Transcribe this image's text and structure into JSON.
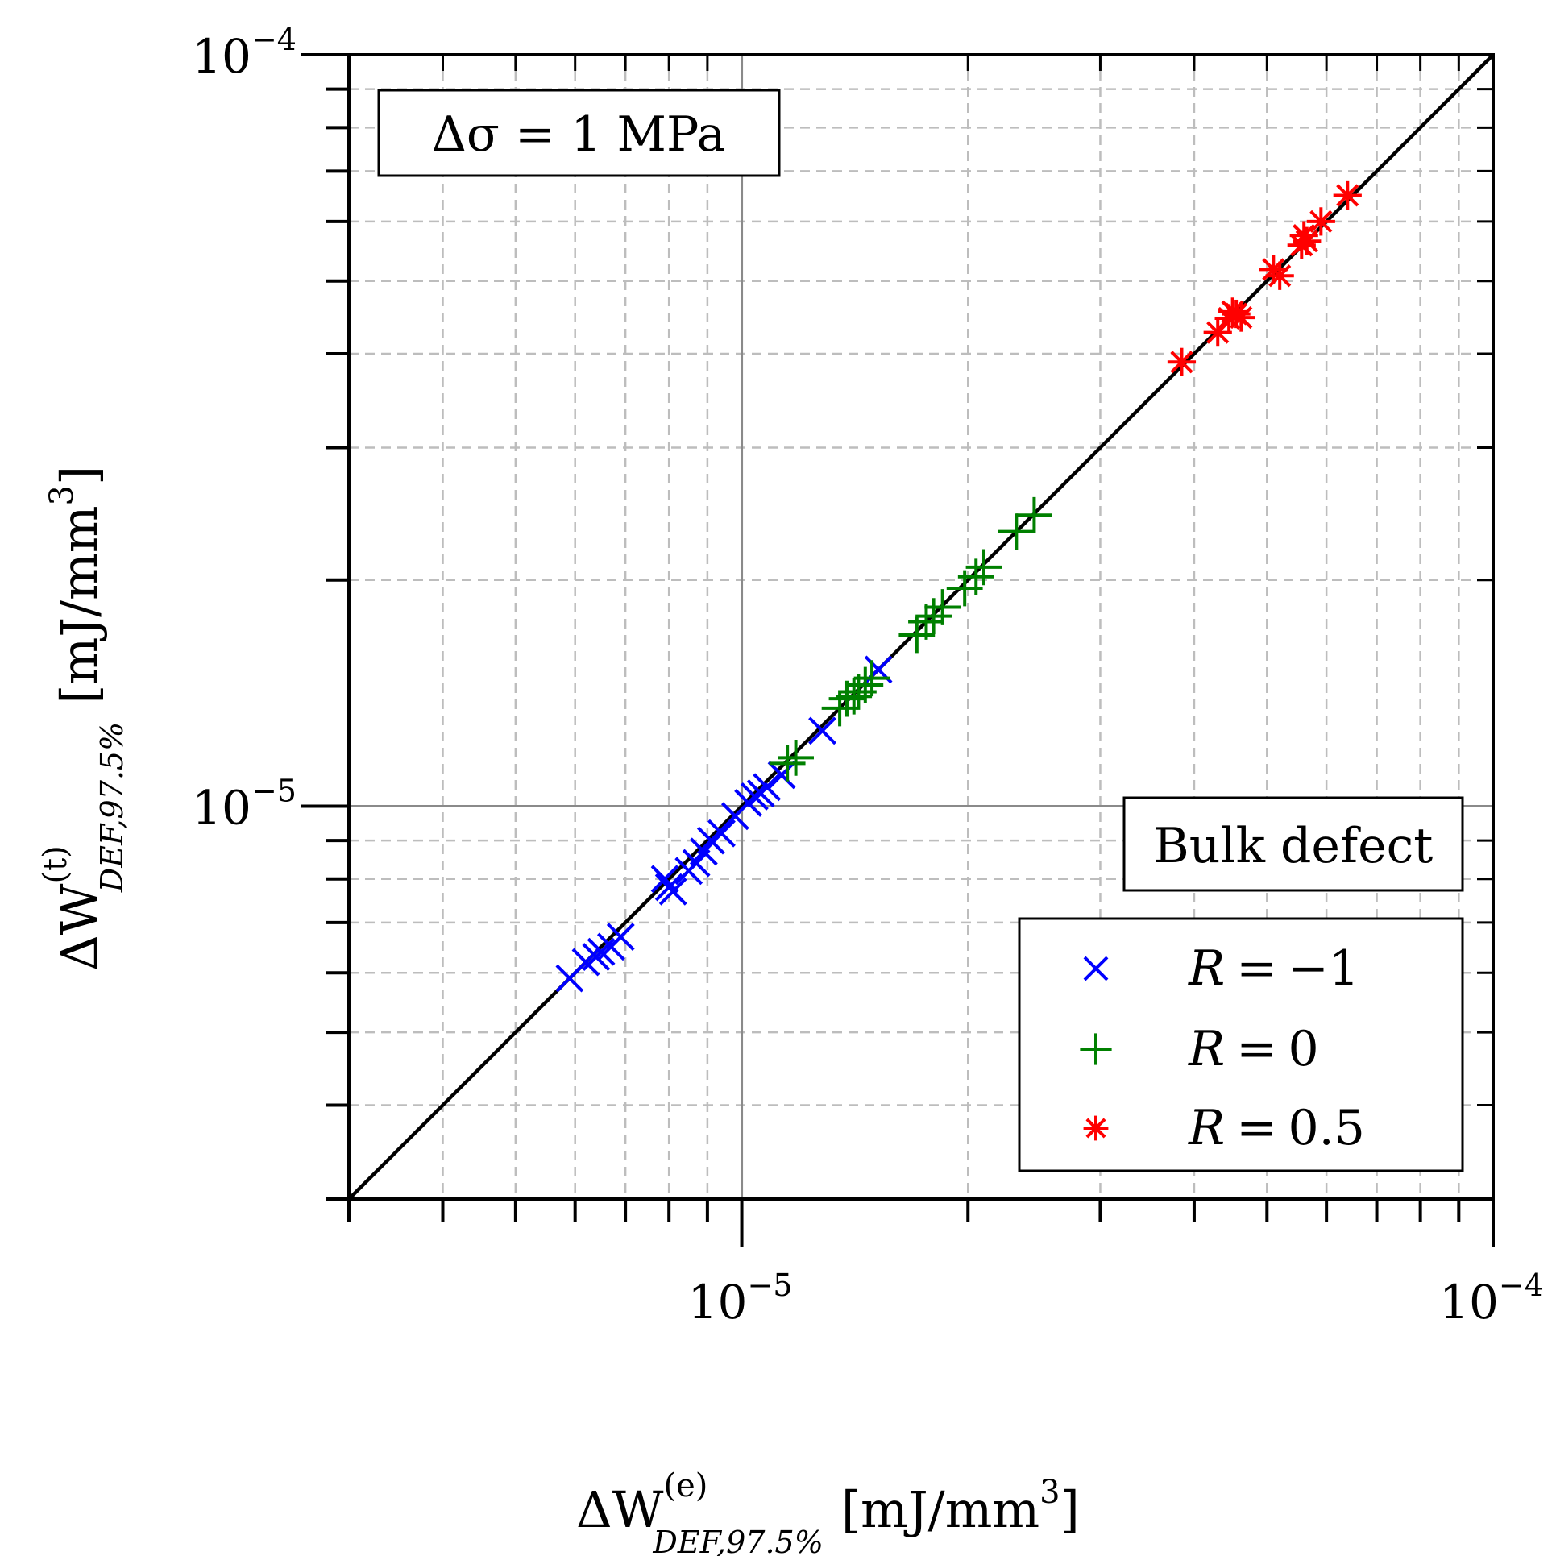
{
  "chart_data": {
    "type": "scatter",
    "x_scale": "log",
    "y_scale": "log",
    "xlim": [
      3e-06,
      0.0001
    ],
    "ylim": [
      3e-06,
      0.0001
    ],
    "x_ticks": [
      {
        "value": 1e-05,
        "base": "10",
        "exp": "−5"
      },
      {
        "value": 0.0001,
        "base": "10",
        "exp": "−4"
      }
    ],
    "y_ticks": [
      {
        "value": 1e-05,
        "base": "10",
        "exp": "−5"
      },
      {
        "value": 0.0001,
        "base": "10",
        "exp": "−4"
      }
    ],
    "xlabel": {
      "prefix": "ΔW",
      "superscript": "(e)",
      "subscript": "DEF,97.5%",
      "unit": "[mJ/mm",
      "unit_exp": "3",
      "unit_close": "]"
    },
    "ylabel": {
      "prefix": "ΔW",
      "superscript": "(t)",
      "subscript": "DEF,97.5%",
      "unit": "[mJ/mm",
      "unit_exp": "3",
      "unit_close": "]"
    },
    "grid": true,
    "reference_line": "y = x",
    "annotation_top_left": "Δσ = 1 MPa",
    "annotation_bottom_right": "Bulk defect",
    "legend_position": "bottom-right",
    "series": [
      {
        "name": "R = −1",
        "label_var": "R",
        "label_eq": "=",
        "label_val": "−1",
        "marker": "x",
        "color": "#0000ff",
        "points": [
          [
            5.9e-06,
            5.9e-06
          ],
          [
            6.2e-06,
            6.2e-06
          ],
          [
            6.4e-06,
            6.3e-06
          ],
          [
            6.5e-06,
            6.4e-06
          ],
          [
            6.7e-06,
            6.5e-06
          ],
          [
            6.9e-06,
            6.7e-06
          ],
          [
            7.9e-06,
            8e-06
          ],
          [
            8e-06,
            7.8e-06
          ],
          [
            8.1e-06,
            7.7e-06
          ],
          [
            8.5e-06,
            8.2e-06
          ],
          [
            8.7e-06,
            8.4e-06
          ],
          [
            8.9e-06,
            8.7e-06
          ],
          [
            9.1e-06,
            9e-06
          ],
          [
            9.4e-06,
            9.2e-06
          ],
          [
            9.8e-06,
            9.7e-06
          ],
          [
            1.02e-05,
            1.01e-05
          ],
          [
            1.04e-05,
            1.03e-05
          ],
          [
            1.06e-05,
            1.04e-05
          ],
          [
            1.08e-05,
            1.06e-05
          ],
          [
            1.13e-05,
            1.1e-05
          ],
          [
            1.28e-05,
            1.26e-05
          ],
          [
            1.52e-05,
            1.52e-05
          ]
        ]
      },
      {
        "name": "R = 0",
        "label_var": "R",
        "label_eq": "=",
        "label_val": "0",
        "marker": "+",
        "color": "#008000",
        "points": [
          [
            1.15e-05,
            1.14e-05
          ],
          [
            1.18e-05,
            1.16e-05
          ],
          [
            1.35e-05,
            1.35e-05
          ],
          [
            1.38e-05,
            1.39e-05
          ],
          [
            1.41e-05,
            1.4e-05
          ],
          [
            1.43e-05,
            1.42e-05
          ],
          [
            1.46e-05,
            1.45e-05
          ],
          [
            1.49e-05,
            1.48e-05
          ],
          [
            1.71e-05,
            1.69e-05
          ],
          [
            1.76e-05,
            1.76e-05
          ],
          [
            1.8e-05,
            1.79e-05
          ],
          [
            1.85e-05,
            1.84e-05
          ],
          [
            1.98e-05,
            1.95e-05
          ],
          [
            2.05e-05,
            2.02e-05
          ],
          [
            2.1e-05,
            2.08e-05
          ],
          [
            2.32e-05,
            2.32e-05
          ],
          [
            2.45e-05,
            2.44e-05
          ]
        ]
      },
      {
        "name": "R = 0.5",
        "label_var": "R",
        "label_eq": "=",
        "label_val": "0.5",
        "marker": "*",
        "color": "#ff0000",
        "points": [
          [
            3.85e-05,
            3.9e-05
          ],
          [
            4.3e-05,
            4.27e-05
          ],
          [
            4.45e-05,
            4.46e-05
          ],
          [
            4.5e-05,
            4.55e-05
          ],
          [
            4.55e-05,
            4.52e-05
          ],
          [
            4.62e-05,
            4.47e-05
          ],
          [
            5.1e-05,
            5.18e-05
          ],
          [
            5.2e-05,
            5.08e-05
          ],
          [
            5.56e-05,
            5.58e-05
          ],
          [
            5.6e-05,
            5.75e-05
          ],
          [
            5.65e-05,
            5.65e-05
          ],
          [
            5.9e-05,
            6e-05
          ],
          [
            6.4e-05,
            6.5e-05
          ]
        ]
      }
    ]
  }
}
